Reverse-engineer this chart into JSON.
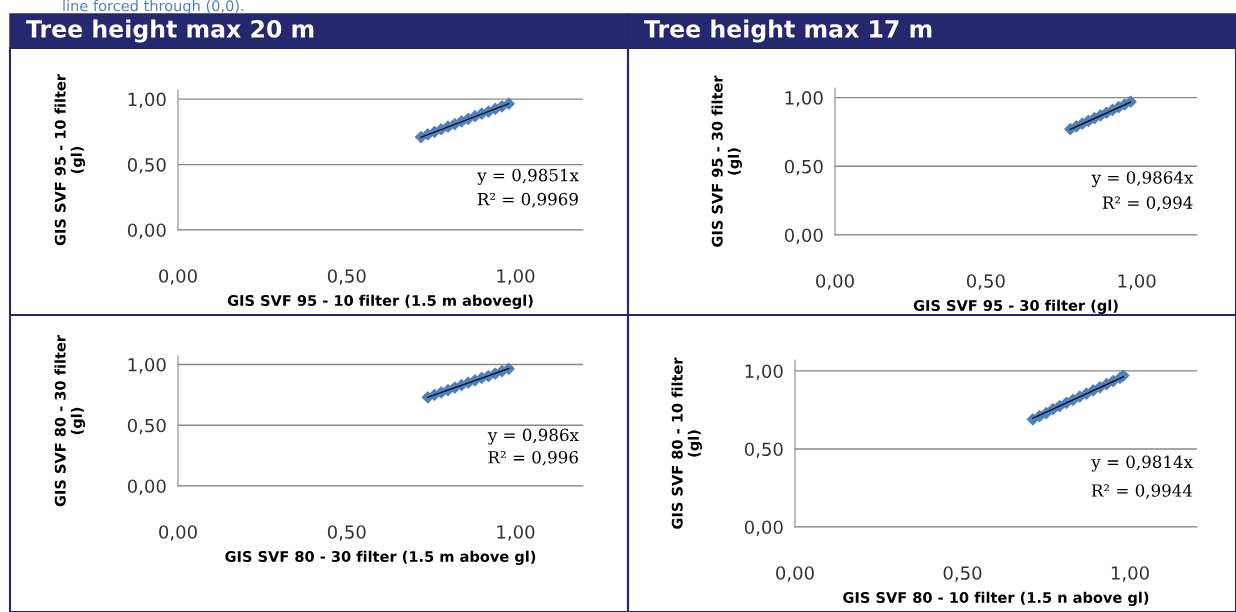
{
  "chart_data": [
    {
      "type": "scatter",
      "title": "Tree height max 20 m",
      "xlabel": "GIS SVF 95 - 10 filter (1.5 m abovegl)",
      "ylabel": "GIS SVF 95 - 10 filter\n(gl)",
      "xlim": [
        0,
        1.2
      ],
      "ylim": [
        0,
        1.07
      ],
      "xticks": [
        {
          "value": 0,
          "label": "0,00"
        },
        {
          "value": 0.5,
          "label": "0,50"
        },
        {
          "value": 1,
          "label": "1,00"
        }
      ],
      "yticks": [
        {
          "value": 0,
          "label": "0,00"
        },
        {
          "value": 0.5,
          "label": "0,50"
        },
        {
          "value": 1,
          "label": "1,00"
        }
      ],
      "grid": "y",
      "marker": "diamond",
      "annotations": [
        "line forced through (0,0).",
        "y = 0,9851x",
        "R² = 0,9969"
      ],
      "series": [
        {
          "color": "#4f81bd",
          "x": [
            0.72,
            0.74,
            0.76,
            0.78,
            0.8,
            0.82,
            0.84,
            0.86,
            0.88,
            0.9,
            0.92,
            0.94,
            0.96,
            0.98
          ],
          "values": [
            0.71,
            0.73,
            0.75,
            0.77,
            0.79,
            0.81,
            0.83,
            0.85,
            0.87,
            0.89,
            0.905,
            0.925,
            0.945,
            0.965
          ]
        },
        {
          "type": "line",
          "color": "#000000",
          "marker": "none",
          "x": [
            0.72,
            0.98
          ],
          "values": [
            0.709,
            0.965
          ]
        }
      ]
    },
    {
      "type": "scatter",
      "title": "Tree height max 17 m",
      "xlabel": "GIS SVF 95 - 30 filter (gl)",
      "ylabel": "GIS SVF 95 - 30 filter\n(gl)",
      "xlim": [
        0,
        1.2
      ],
      "ylim": [
        0,
        1.07
      ],
      "xticks": [
        {
          "value": 0,
          "label": "0,00"
        },
        {
          "value": 0.5,
          "label": "0,50"
        },
        {
          "value": 1,
          "label": "1,00"
        }
      ],
      "yticks": [
        {
          "value": 0,
          "label": "0,00"
        },
        {
          "value": 0.5,
          "label": "0,50"
        },
        {
          "value": 1,
          "label": "1,00"
        }
      ],
      "grid": "y",
      "marker": "diamond",
      "annotations": [
        "y = 0,9864x",
        "R² = 0,994"
      ],
      "series": [
        {
          "color": "#4f81bd",
          "x": [
            0.78,
            0.8,
            0.82,
            0.84,
            0.86,
            0.88,
            0.9,
            0.92,
            0.94,
            0.96,
            0.98
          ],
          "values": [
            0.77,
            0.79,
            0.81,
            0.83,
            0.85,
            0.87,
            0.89,
            0.91,
            0.93,
            0.95,
            0.97
          ]
        },
        {
          "type": "line",
          "color": "#000000",
          "marker": "none",
          "x": [
            0.78,
            0.98
          ],
          "values": [
            0.769,
            0.967
          ]
        }
      ]
    },
    {
      "type": "scatter",
      "xlabel": "GIS SVF 80 - 30 filter (1.5 m above gl)",
      "ylabel": "GIS SVF 80 - 30 filter\n(gl)",
      "xlim": [
        0,
        1.2
      ],
      "ylim": [
        0,
        1.07
      ],
      "xticks": [
        {
          "value": 0,
          "label": "0,00"
        },
        {
          "value": 0.5,
          "label": "0,50"
        },
        {
          "value": 1,
          "label": "1,00"
        }
      ],
      "yticks": [
        {
          "value": 0,
          "label": "0,00"
        },
        {
          "value": 0.5,
          "label": "0,50"
        },
        {
          "value": 1,
          "label": "1,00"
        }
      ],
      "grid": "y",
      "marker": "diamond",
      "annotations": [
        "y = 0,986x",
        "R² = 0,996"
      ],
      "series": [
        {
          "color": "#4f81bd",
          "x": [
            0.74,
            0.76,
            0.78,
            0.8,
            0.82,
            0.84,
            0.86,
            0.88,
            0.9,
            0.92,
            0.94,
            0.96,
            0.98
          ],
          "values": [
            0.73,
            0.75,
            0.77,
            0.79,
            0.81,
            0.83,
            0.85,
            0.87,
            0.89,
            0.905,
            0.925,
            0.945,
            0.965
          ]
        },
        {
          "type": "line",
          "color": "#000000",
          "marker": "none",
          "x": [
            0.74,
            0.98
          ],
          "values": [
            0.73,
            0.966
          ]
        }
      ]
    },
    {
      "type": "scatter",
      "xlabel": "GIS SVF 80 - 10 filter (1.5 n above gl)",
      "ylabel": "GIS SVF 80 - 10 filter\n(gl)",
      "xlim": [
        0,
        1.2
      ],
      "ylim": [
        0,
        1.07
      ],
      "xticks": [
        {
          "value": 0,
          "label": "0,00"
        },
        {
          "value": 0.5,
          "label": "0,50"
        },
        {
          "value": 1,
          "label": "1,00"
        }
      ],
      "yticks": [
        {
          "value": 0,
          "label": "0,00"
        },
        {
          "value": 0.5,
          "label": "0,50"
        },
        {
          "value": 1,
          "label": "1,00"
        }
      ],
      "grid": "y",
      "marker": "diamond",
      "annotations": [
        "y = 0,9814x",
        "R² = 0,9944"
      ],
      "series": [
        {
          "color": "#4f81bd",
          "x": [
            0.71,
            0.73,
            0.75,
            0.77,
            0.79,
            0.81,
            0.83,
            0.85,
            0.87,
            0.89,
            0.91,
            0.93,
            0.95,
            0.97,
            0.98
          ],
          "values": [
            0.69,
            0.71,
            0.73,
            0.755,
            0.775,
            0.795,
            0.815,
            0.835,
            0.855,
            0.875,
            0.895,
            0.915,
            0.935,
            0.955,
            0.97
          ]
        },
        {
          "type": "line",
          "color": "#000000",
          "marker": "none",
          "x": [
            0.71,
            0.98
          ],
          "values": [
            0.697,
            0.962
          ]
        }
      ]
    }
  ]
}
